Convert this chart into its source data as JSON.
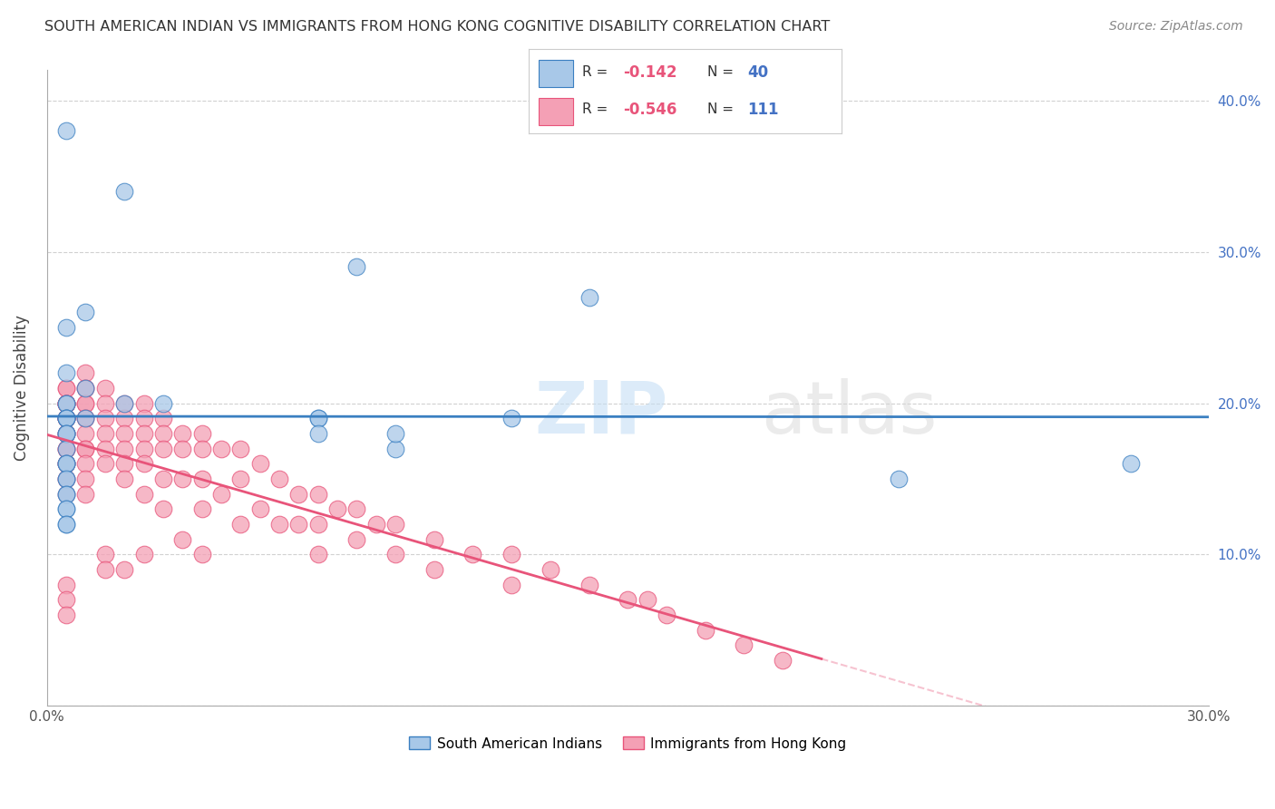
{
  "title": "SOUTH AMERICAN INDIAN VS IMMIGRANTS FROM HONG KONG COGNITIVE DISABILITY CORRELATION CHART",
  "source": "Source: ZipAtlas.com",
  "ylabel": "Cognitive Disability",
  "x_min": 0.0,
  "x_max": 0.3,
  "y_min": 0.0,
  "y_max": 0.42,
  "blue_R": -0.142,
  "blue_N": 40,
  "pink_R": -0.546,
  "pink_N": 111,
  "blue_color": "#a8c8e8",
  "pink_color": "#f4a0b5",
  "blue_line_color": "#3a7fc1",
  "pink_line_color": "#e8547a",
  "watermark_zip": "ZIP",
  "watermark_atlas": "atlas",
  "legend_label_blue": "South American Indians",
  "legend_label_pink": "Immigrants from Hong Kong",
  "blue_scatter_x": [
    0.02,
    0.01,
    0.08,
    0.14,
    0.005,
    0.01,
    0.005,
    0.02,
    0.03,
    0.005,
    0.005,
    0.005,
    0.01,
    0.005,
    0.005,
    0.005,
    0.005,
    0.005,
    0.005,
    0.07,
    0.07,
    0.12,
    0.09,
    0.005,
    0.005,
    0.005,
    0.07,
    0.09,
    0.005,
    0.005,
    0.005,
    0.005,
    0.005,
    0.005,
    0.005,
    0.005,
    0.28,
    0.22,
    0.005,
    0.005
  ],
  "blue_scatter_y": [
    0.34,
    0.26,
    0.29,
    0.27,
    0.22,
    0.21,
    0.2,
    0.2,
    0.2,
    0.2,
    0.19,
    0.19,
    0.19,
    0.19,
    0.19,
    0.18,
    0.18,
    0.18,
    0.17,
    0.19,
    0.19,
    0.19,
    0.17,
    0.16,
    0.16,
    0.15,
    0.18,
    0.18,
    0.16,
    0.15,
    0.14,
    0.14,
    0.13,
    0.13,
    0.12,
    0.12,
    0.16,
    0.15,
    0.38,
    0.25
  ],
  "pink_scatter_x": [
    0.005,
    0.005,
    0.005,
    0.005,
    0.005,
    0.005,
    0.005,
    0.005,
    0.005,
    0.005,
    0.005,
    0.005,
    0.005,
    0.005,
    0.005,
    0.005,
    0.005,
    0.005,
    0.005,
    0.005,
    0.005,
    0.005,
    0.005,
    0.005,
    0.005,
    0.005,
    0.005,
    0.005,
    0.005,
    0.01,
    0.01,
    0.01,
    0.01,
    0.01,
    0.01,
    0.01,
    0.01,
    0.01,
    0.01,
    0.01,
    0.01,
    0.01,
    0.015,
    0.015,
    0.015,
    0.015,
    0.015,
    0.015,
    0.015,
    0.015,
    0.02,
    0.02,
    0.02,
    0.02,
    0.02,
    0.02,
    0.02,
    0.025,
    0.025,
    0.025,
    0.025,
    0.025,
    0.025,
    0.025,
    0.03,
    0.03,
    0.03,
    0.03,
    0.03,
    0.035,
    0.035,
    0.035,
    0.035,
    0.04,
    0.04,
    0.04,
    0.04,
    0.04,
    0.045,
    0.045,
    0.05,
    0.05,
    0.05,
    0.055,
    0.055,
    0.06,
    0.06,
    0.065,
    0.065,
    0.07,
    0.07,
    0.07,
    0.075,
    0.08,
    0.08,
    0.085,
    0.09,
    0.09,
    0.1,
    0.1,
    0.11,
    0.12,
    0.12,
    0.13,
    0.14,
    0.15,
    0.155,
    0.16,
    0.17,
    0.18,
    0.19
  ],
  "pink_scatter_y": [
    0.21,
    0.21,
    0.2,
    0.2,
    0.2,
    0.2,
    0.2,
    0.2,
    0.19,
    0.19,
    0.19,
    0.19,
    0.19,
    0.19,
    0.18,
    0.18,
    0.18,
    0.17,
    0.17,
    0.17,
    0.16,
    0.16,
    0.16,
    0.15,
    0.15,
    0.14,
    0.08,
    0.07,
    0.06,
    0.22,
    0.21,
    0.21,
    0.2,
    0.2,
    0.19,
    0.19,
    0.18,
    0.17,
    0.17,
    0.16,
    0.15,
    0.14,
    0.21,
    0.2,
    0.19,
    0.18,
    0.17,
    0.16,
    0.1,
    0.09,
    0.2,
    0.19,
    0.18,
    0.17,
    0.16,
    0.15,
    0.09,
    0.2,
    0.19,
    0.18,
    0.17,
    0.16,
    0.14,
    0.1,
    0.19,
    0.18,
    0.17,
    0.15,
    0.13,
    0.18,
    0.17,
    0.15,
    0.11,
    0.18,
    0.17,
    0.15,
    0.13,
    0.1,
    0.17,
    0.14,
    0.17,
    0.15,
    0.12,
    0.16,
    0.13,
    0.15,
    0.12,
    0.14,
    0.12,
    0.14,
    0.12,
    0.1,
    0.13,
    0.13,
    0.11,
    0.12,
    0.12,
    0.1,
    0.11,
    0.09,
    0.1,
    0.1,
    0.08,
    0.09,
    0.08,
    0.07,
    0.07,
    0.06,
    0.05,
    0.04,
    0.03
  ]
}
